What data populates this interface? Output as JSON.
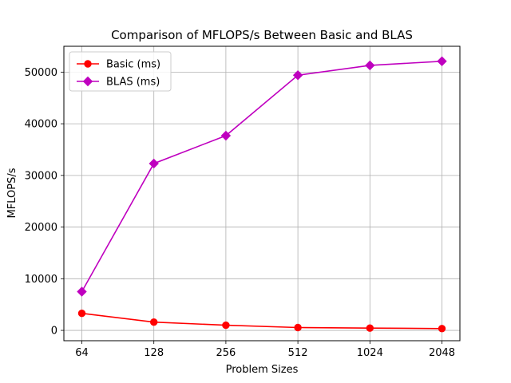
{
  "chart_data": {
    "type": "line",
    "title": "Comparison of MFLOPS/s Between Basic and BLAS",
    "xlabel": "Problem Sizes",
    "ylabel": "MFLOPS/s",
    "categories": [
      "64",
      "128",
      "256",
      "512",
      "1024",
      "2048"
    ],
    "ylim": [
      -2000,
      55000
    ],
    "yticks": [
      0,
      10000,
      20000,
      30000,
      40000,
      50000
    ],
    "ytick_labels": [
      "0",
      "10000",
      "20000",
      "30000",
      "40000",
      "50000"
    ],
    "grid": true,
    "legend_position": "top-left",
    "series": [
      {
        "name": "Basic (ms)",
        "color": "#ff0000",
        "marker": "circle",
        "values": [
          3300,
          1600,
          1000,
          550,
          450,
          350
        ]
      },
      {
        "name": "BLAS (ms)",
        "color": "#bf00bf",
        "marker": "diamond",
        "values": [
          7500,
          32300,
          37700,
          49400,
          51300,
          52100
        ]
      }
    ]
  }
}
